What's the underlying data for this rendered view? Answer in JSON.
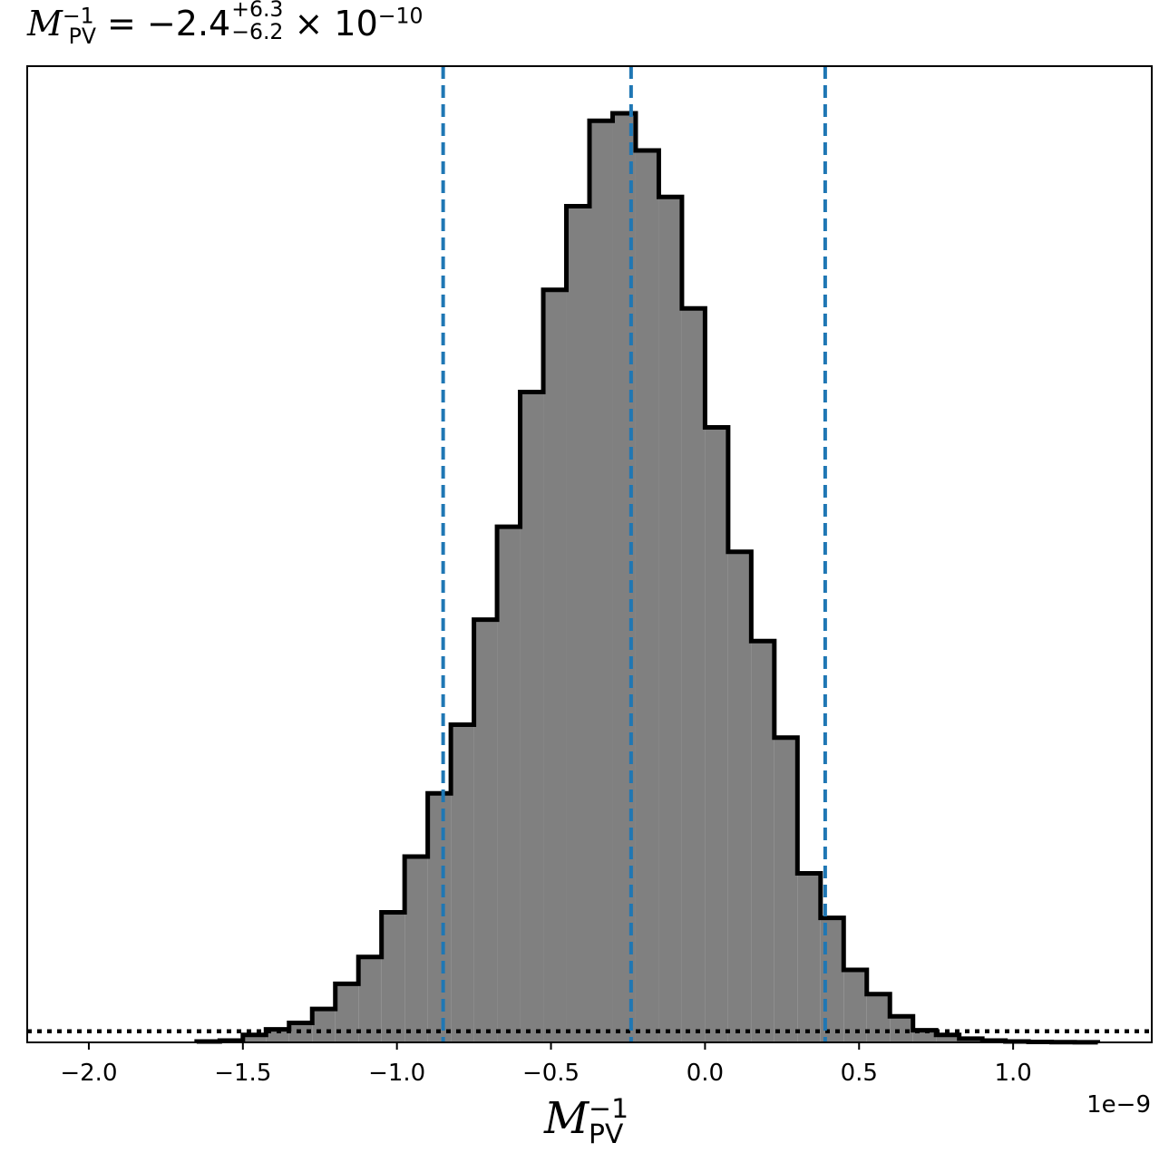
{
  "title": {
    "symbol": "M",
    "sub": "PV",
    "sup": "−1",
    "equals": " = −2.4",
    "upper": "+6.3",
    "lower": "−6.2",
    "times": "× 10",
    "exp": "−10"
  },
  "xlabel": {
    "symbol": "M",
    "sub": "PV",
    "sup": "−1"
  },
  "offset_text": "1e−9",
  "chart_data": {
    "type": "bar",
    "xlim": [
      -2.2,
      1.45
    ],
    "ylim": [
      0,
      1.0
    ],
    "xticks": [
      -2.0,
      -1.5,
      -1.0,
      -0.5,
      0.0,
      0.5,
      1.0
    ],
    "xtick_labels": [
      "−2.0",
      "−1.5",
      "−1.0",
      "−0.5",
      "0.0",
      "0.5",
      "1.0"
    ],
    "bin_edges": [
      -1.65,
      -1.575,
      -1.5,
      -1.425,
      -1.35,
      -1.275,
      -1.2,
      -1.125,
      -1.05,
      -0.975,
      -0.9,
      -0.825,
      -0.75,
      -0.675,
      -0.6,
      -0.525,
      -0.45,
      -0.375,
      -0.3,
      -0.225,
      -0.15,
      -0.075,
      0.0,
      0.075,
      0.15,
      0.225,
      0.3,
      0.375,
      0.45,
      0.525,
      0.6,
      0.675,
      0.75,
      0.825,
      0.9,
      0.975,
      1.05,
      1.125,
      1.2,
      1.275
    ],
    "values": [
      0.001,
      0.002,
      0.008,
      0.014,
      0.021,
      0.036,
      0.063,
      0.092,
      0.14,
      0.2,
      0.268,
      0.342,
      0.455,
      0.555,
      0.7,
      0.81,
      0.9,
      0.992,
      1.0,
      0.96,
      0.91,
      0.79,
      0.662,
      0.528,
      0.432,
      0.328,
      0.182,
      0.134,
      0.078,
      0.052,
      0.028,
      0.013,
      0.008,
      0.004,
      0.002,
      0.001,
      0.0005,
      0.0003,
      0.0001
    ],
    "median_line": -0.24,
    "ci_lines": [
      -0.85,
      0.39
    ],
    "dotted_level": 0.012,
    "hist_color": "#808080",
    "edge_color": "#000000",
    "line_color": "#1f77b4",
    "x_scale_factor": "1e-9"
  }
}
